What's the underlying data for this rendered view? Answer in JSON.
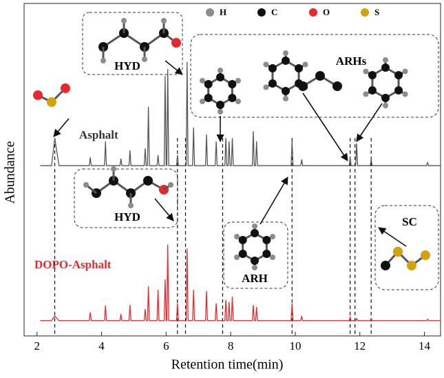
{
  "chart_data": {
    "type": "line",
    "x_label": "Retention time(min)",
    "y_label": "Abundance",
    "xlim": [
      1.6,
      14.5
    ],
    "xticks": [
      2,
      4,
      6,
      8,
      10,
      12,
      14
    ],
    "ylim": [
      0,
      100
    ],
    "x": [
      2.1,
      2.45,
      2.55,
      2.68,
      3.62,
      3.65,
      3.68,
      4.09,
      4.12,
      4.15,
      4.57,
      4.6,
      4.63,
      4.85,
      4.88,
      4.91,
      5.32,
      5.35,
      5.38,
      5.42,
      5.45,
      5.48,
      5.72,
      5.75,
      5.78,
      5.94,
      5.97,
      6.0,
      6.02,
      6.05,
      6.08,
      6.32,
      6.35,
      6.38,
      6.62,
      6.65,
      6.68,
      6.82,
      6.85,
      6.88,
      7.22,
      7.25,
      7.28,
      7.52,
      7.55,
      7.58,
      7.82,
      7.85,
      7.88,
      7.92,
      7.95,
      7.98,
      8.02,
      8.05,
      8.08,
      8.67,
      8.7,
      8.73,
      8.77,
      8.8,
      8.83,
      9.87,
      9.9,
      9.93,
      10.17,
      10.2,
      10.23,
      11.67,
      11.7,
      11.73,
      11.87,
      11.9,
      11.93,
      12.32,
      12.35,
      12.38,
      14.07,
      14.1,
      14.13,
      14.5
    ],
    "series": [
      {
        "name": "Asphalt",
        "color": "#555555",
        "values": [
          51.2,
          51.2,
          59.5,
          51.2,
          51.2,
          53.7,
          51.2,
          51.2,
          58.5,
          51.2,
          51.2,
          53.3,
          51.2,
          51.2,
          55.8,
          51.2,
          51.2,
          56.4,
          51.2,
          51.2,
          68.9,
          51.2,
          51.2,
          54.4,
          51.2,
          51.2,
          78.2,
          51.2,
          51.2,
          80.3,
          51.2,
          51.2,
          54.4,
          51.2,
          51.2,
          82.4,
          51.2,
          51.2,
          62.7,
          51.2,
          51.2,
          60.6,
          51.2,
          51.2,
          58.5,
          51.2,
          51.2,
          59.5,
          51.2,
          51.2,
          58.5,
          51.2,
          51.2,
          59.5,
          51.2,
          51.2,
          61.6,
          51.2,
          51.2,
          58.5,
          51.2,
          51.2,
          58.5,
          51.2,
          51.2,
          53.1,
          51.2,
          51.2,
          53.7,
          51.2,
          51.2,
          57.9,
          51.2,
          51.2,
          53.1,
          51.2,
          51.2,
          52.1,
          51.2,
          51.2
        ]
      },
      {
        "name": "DOPO-Asphalt",
        "color": "#e8282b",
        "values": [
          4.6,
          4.6,
          6.0,
          4.6,
          4.6,
          7.1,
          4.6,
          4.6,
          9.1,
          4.6,
          4.6,
          6.6,
          4.6,
          4.6,
          9.3,
          4.6,
          4.6,
          8.1,
          4.6,
          4.6,
          14.9,
          4.6,
          4.6,
          13.9,
          4.6,
          4.6,
          17.0,
          4.6,
          4.6,
          27.4,
          4.6,
          4.6,
          9.8,
          4.6,
          4.6,
          26.3,
          4.6,
          4.6,
          13.9,
          4.6,
          4.6,
          13.5,
          4.6,
          4.6,
          9.8,
          4.6,
          4.6,
          10.8,
          4.6,
          4.6,
          10.2,
          4.6,
          4.6,
          11.8,
          4.6,
          4.6,
          9.3,
          4.6,
          4.6,
          8.7,
          4.6,
          4.6,
          9.8,
          4.6,
          4.6,
          6.0,
          4.6,
          4.6,
          5.6,
          4.6,
          4.6,
          5.2,
          4.6,
          4.6,
          5.2,
          4.6,
          4.6,
          5.0,
          4.6,
          4.6
        ]
      }
    ],
    "marker_lines": [
      2.55,
      6.35,
      6.6,
      7.75,
      9.9,
      11.7,
      11.85,
      12.35
    ],
    "annotations": [
      "HYD",
      "ARHs",
      "HYD",
      "ARH",
      "SC"
    ],
    "atom_legend": [
      {
        "label": "H",
        "color": "#8c8c8c"
      },
      {
        "label": "C",
        "color": "#111111"
      },
      {
        "label": "O",
        "color": "#e8282b"
      },
      {
        "label": "S",
        "color": "#d4a20a"
      }
    ]
  }
}
